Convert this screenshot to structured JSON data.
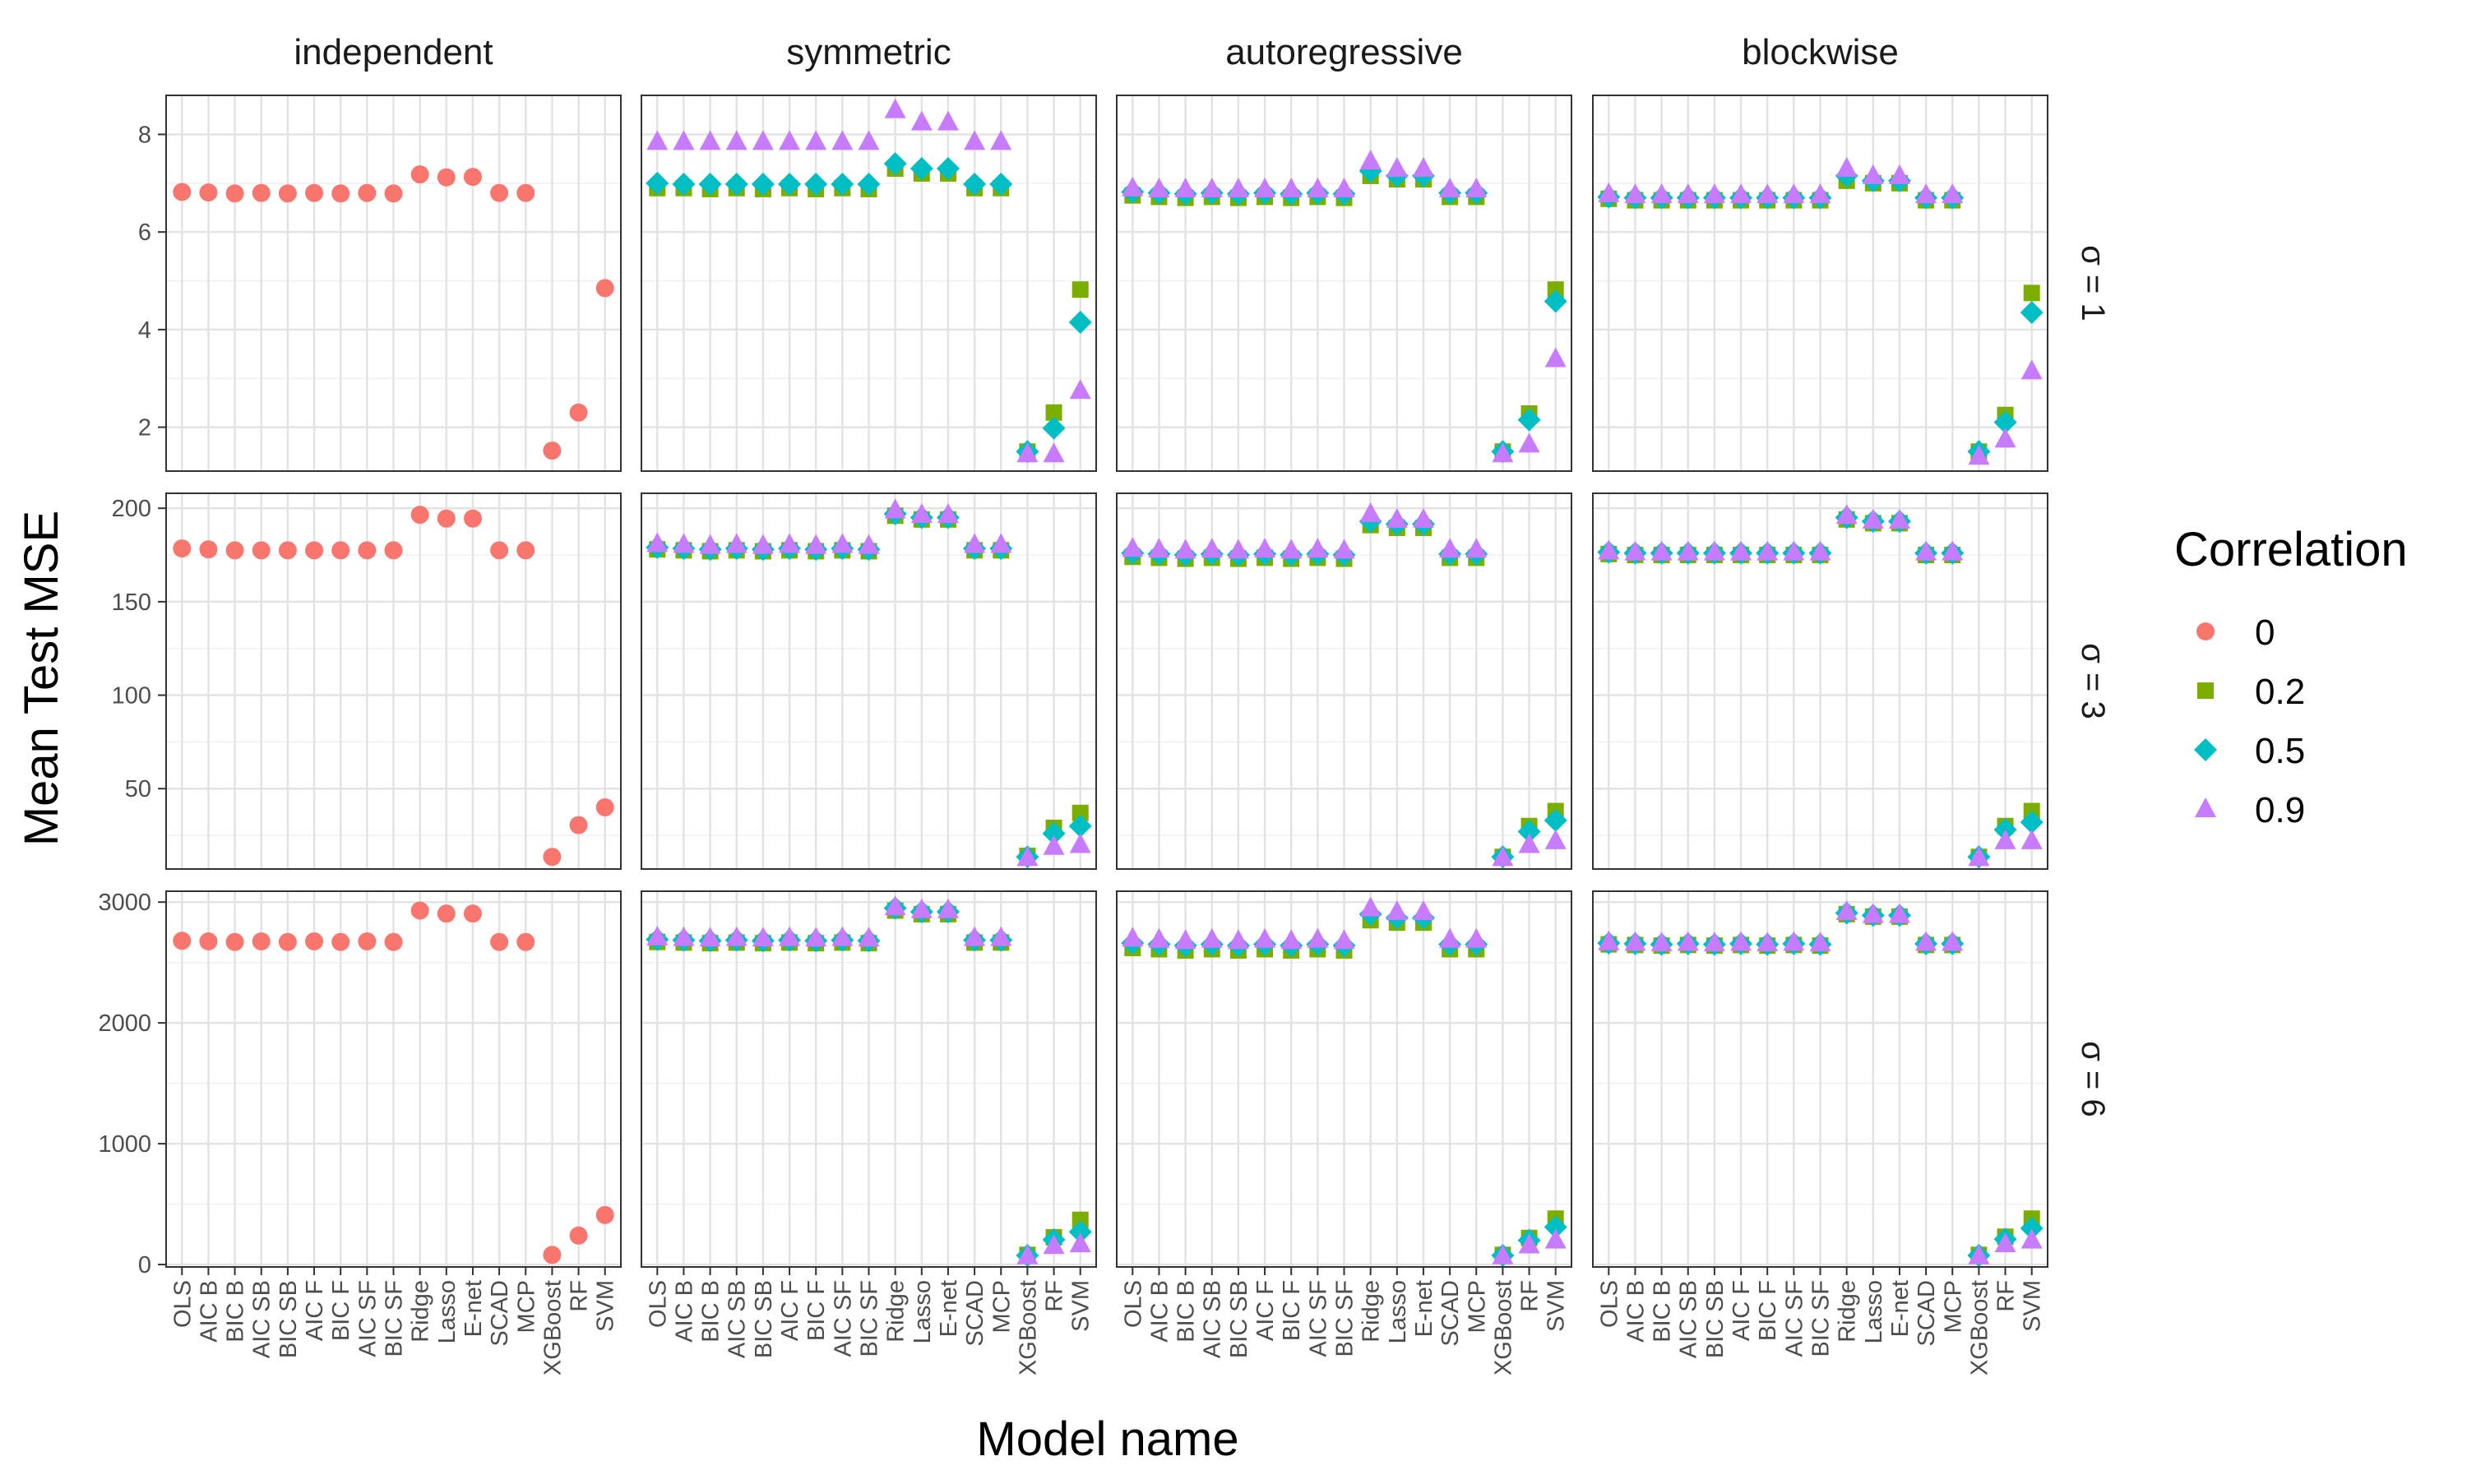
{
  "chart_data": {
    "type": "scatter",
    "ylabel": "Mean Test MSE",
    "xlabel": "Model name",
    "legend": {
      "title": "Correlation",
      "placement": "right",
      "entries": [
        {
          "label": "0",
          "color": "#F8766D",
          "shape": "circle"
        },
        {
          "label": "0.2",
          "color": "#7CAE00",
          "shape": "square"
        },
        {
          "label": "0.5",
          "color": "#00BFC4",
          "shape": "diamond"
        },
        {
          "label": "0.9",
          "color": "#C77CFF",
          "shape": "triangle"
        }
      ]
    },
    "columns": [
      "independent",
      "symmetric",
      "autoregressive",
      "blockwise"
    ],
    "categories": [
      "OLS",
      "AIC B",
      "BIC B",
      "AIC SB",
      "BIC SB",
      "AIC F",
      "BIC F",
      "AIC SF",
      "BIC SF",
      "Ridge",
      "Lasso",
      "E-net",
      "SCAD",
      "MCP",
      "XGBoost",
      "RF",
      "SVM"
    ],
    "grid": true,
    "rows": [
      {
        "label": "σ = 1",
        "ylim": [
          1.1,
          8.8
        ],
        "yticks": [
          2,
          4,
          6,
          8
        ],
        "yticklabels": [
          "2",
          "4",
          "6",
          "8"
        ],
        "panels": [
          {
            "series": [
              {
                "corr": "0",
                "values": [
                  6.82,
                  6.81,
                  6.79,
                  6.8,
                  6.79,
                  6.8,
                  6.79,
                  6.8,
                  6.79,
                  7.18,
                  7.12,
                  7.13,
                  6.8,
                  6.8,
                  1.52,
                  2.3,
                  4.85
                ]
              }
            ]
          },
          {
            "series": [
              {
                "corr": "0.2",
                "values": [
                  6.9,
                  6.9,
                  6.88,
                  6.9,
                  6.88,
                  6.9,
                  6.88,
                  6.9,
                  6.88,
                  7.3,
                  7.2,
                  7.2,
                  6.9,
                  6.9,
                  1.5,
                  2.3,
                  4.82
                ]
              },
              {
                "corr": "0.5",
                "values": [
                  7.0,
                  6.98,
                  6.98,
                  6.98,
                  6.98,
                  6.98,
                  6.98,
                  6.98,
                  6.98,
                  7.4,
                  7.3,
                  7.3,
                  6.98,
                  6.98,
                  1.5,
                  1.98,
                  4.15
                ]
              },
              {
                "corr": "0.9",
                "values": [
                  7.85,
                  7.85,
                  7.85,
                  7.85,
                  7.85,
                  7.85,
                  7.85,
                  7.85,
                  7.85,
                  8.5,
                  8.25,
                  8.25,
                  7.85,
                  7.85,
                  1.45,
                  1.45,
                  2.75
                ]
              }
            ]
          },
          {
            "series": [
              {
                "corr": "0.2",
                "values": [
                  6.75,
                  6.72,
                  6.7,
                  6.72,
                  6.7,
                  6.72,
                  6.7,
                  6.72,
                  6.7,
                  7.15,
                  7.08,
                  7.08,
                  6.72,
                  6.72,
                  1.5,
                  2.28,
                  4.82
                ]
              },
              {
                "corr": "0.5",
                "values": [
                  6.82,
                  6.8,
                  6.78,
                  6.8,
                  6.78,
                  6.8,
                  6.78,
                  6.8,
                  6.78,
                  7.25,
                  7.15,
                  7.15,
                  6.8,
                  6.8,
                  1.5,
                  2.15,
                  4.58
                ]
              },
              {
                "corr": "0.9",
                "values": [
                  6.9,
                  6.88,
                  6.88,
                  6.88,
                  6.88,
                  6.88,
                  6.88,
                  6.88,
                  6.88,
                  7.45,
                  7.3,
                  7.3,
                  6.88,
                  6.88,
                  1.45,
                  1.65,
                  3.4
                ]
              }
            ]
          },
          {
            "series": [
              {
                "corr": "0.2",
                "values": [
                  6.68,
                  6.65,
                  6.65,
                  6.65,
                  6.65,
                  6.65,
                  6.65,
                  6.65,
                  6.65,
                  7.05,
                  7.0,
                  7.0,
                  6.65,
                  6.65,
                  1.5,
                  2.25,
                  4.75
                ]
              },
              {
                "corr": "0.5",
                "values": [
                  6.72,
                  6.7,
                  6.7,
                  6.7,
                  6.7,
                  6.7,
                  6.7,
                  6.7,
                  6.7,
                  7.15,
                  7.05,
                  7.05,
                  6.7,
                  6.7,
                  1.5,
                  2.1,
                  4.35
                ]
              },
              {
                "corr": "0.9",
                "values": [
                  6.78,
                  6.76,
                  6.76,
                  6.76,
                  6.76,
                  6.76,
                  6.76,
                  6.76,
                  6.76,
                  7.3,
                  7.15,
                  7.15,
                  6.76,
                  6.76,
                  1.4,
                  1.75,
                  3.15
                ]
              }
            ]
          }
        ]
      },
      {
        "label": "σ = 3",
        "ylim": [
          7,
          208
        ],
        "yticks": [
          50,
          100,
          150,
          200
        ],
        "yticklabels": [
          "50",
          "100",
          "150",
          "200"
        ],
        "panels": [
          {
            "series": [
              {
                "corr": "0",
                "values": [
                  178.5,
                  178,
                  177.5,
                  177.5,
                  177.5,
                  177.5,
                  177.5,
                  177.5,
                  177.5,
                  196.5,
                  194.5,
                  194.5,
                  177.5,
                  177.5,
                  13.5,
                  30.5,
                  40
                ]
              }
            ]
          },
          {
            "series": [
              {
                "corr": "0.2",
                "values": [
                  178,
                  177.5,
                  177,
                  177.5,
                  177,
                  177.5,
                  177,
                  177.5,
                  177,
                  196,
                  194,
                  194,
                  177.5,
                  177.5,
                  14,
                  29,
                  37
                ]
              },
              {
                "corr": "0.5",
                "values": [
                  179,
                  178.5,
                  178,
                  178.5,
                  178,
                  178.5,
                  178,
                  178.5,
                  178,
                  197,
                  195,
                  195,
                  178.5,
                  178.5,
                  13.5,
                  26,
                  30
                ]
              },
              {
                "corr": "0.9",
                "values": [
                  181,
                  180.5,
                  180,
                  180.5,
                  180,
                  180.5,
                  180,
                  180.5,
                  180,
                  199,
                  196.5,
                  196.5,
                  180.5,
                  180.5,
                  13,
                  19,
                  20
                ]
              }
            ]
          },
          {
            "series": [
              {
                "corr": "0.2",
                "values": [
                  174,
                  173.5,
                  173,
                  173.5,
                  173,
                  173.5,
                  173,
                  173.5,
                  173,
                  191,
                  189.5,
                  189.5,
                  173.5,
                  173.5,
                  13.5,
                  30,
                  38
                ]
              },
              {
                "corr": "0.5",
                "values": [
                  176,
                  175.5,
                  175,
                  175.5,
                  175,
                  175.5,
                  175,
                  175.5,
                  175,
                  193,
                  191.5,
                  191.5,
                  175.5,
                  175.5,
                  13.5,
                  27,
                  33
                ]
              },
              {
                "corr": "0.9",
                "values": [
                  178.5,
                  178,
                  177.5,
                  178,
                  177.5,
                  178,
                  177.5,
                  178,
                  177.5,
                  197,
                  194,
                  194,
                  178,
                  178,
                  13,
                  20,
                  22
                ]
              }
            ]
          },
          {
            "series": [
              {
                "corr": "0.2",
                "values": [
                  175.5,
                  175,
                  175,
                  175,
                  175,
                  175,
                  175,
                  175,
                  175,
                  194,
                  192,
                  192,
                  175,
                  175,
                  13.5,
                  30,
                  38
                ]
              },
              {
                "corr": "0.5",
                "values": [
                  176.5,
                  176,
                  176,
                  176,
                  176,
                  176,
                  176,
                  176,
                  176,
                  195,
                  193,
                  193,
                  176,
                  176,
                  13.5,
                  28,
                  32
                ]
              },
              {
                "corr": "0.9",
                "values": [
                  177,
                  176.5,
                  176.5,
                  176.5,
                  176.5,
                  176.5,
                  176.5,
                  176.5,
                  176.5,
                  196,
                  193.5,
                  193.5,
                  176.5,
                  176.5,
                  13,
                  22,
                  22
                ]
              }
            ]
          }
        ]
      },
      {
        "label": "σ = 6",
        "ylim": [
          -20,
          3090
        ],
        "yticks": [
          0,
          1000,
          2000,
          3000
        ],
        "yticklabels": [
          "0",
          "1000",
          "2000",
          "3000"
        ],
        "panels": [
          {
            "series": [
              {
                "corr": "0",
                "values": [
                  2680,
                  2675,
                  2670,
                  2675,
                  2670,
                  2675,
                  2670,
                  2675,
                  2670,
                  2930,
                  2905,
                  2905,
                  2670,
                  2670,
                  80,
                  240,
                  410
                ]
              }
            ]
          },
          {
            "series": [
              {
                "corr": "0.2",
                "values": [
                  2670,
                  2665,
                  2660,
                  2665,
                  2660,
                  2665,
                  2660,
                  2665,
                  2660,
                  2930,
                  2900,
                  2900,
                  2665,
                  2665,
                  80,
                  225,
                  370
                ]
              },
              {
                "corr": "0.5",
                "values": [
                  2690,
                  2685,
                  2680,
                  2685,
                  2680,
                  2685,
                  2680,
                  2685,
                  2680,
                  2950,
                  2920,
                  2920,
                  2685,
                  2685,
                  75,
                  205,
                  270
                ]
              },
              {
                "corr": "0.9",
                "values": [
                  2710,
                  2705,
                  2700,
                  2705,
                  2700,
                  2705,
                  2700,
                  2705,
                  2700,
                  2960,
                  2935,
                  2935,
                  2705,
                  2705,
                  70,
                  155,
                  170
                ]
              }
            ]
          },
          {
            "series": [
              {
                "corr": "0.2",
                "values": [
                  2620,
                  2610,
                  2600,
                  2610,
                  2600,
                  2610,
                  2600,
                  2610,
                  2600,
                  2850,
                  2830,
                  2830,
                  2610,
                  2610,
                  80,
                  220,
                  380
                ]
              },
              {
                "corr": "0.5",
                "values": [
                  2660,
                  2650,
                  2640,
                  2650,
                  2640,
                  2650,
                  2640,
                  2650,
                  2640,
                  2900,
                  2870,
                  2870,
                  2650,
                  2650,
                  75,
                  200,
                  310
                ]
              },
              {
                "corr": "0.9",
                "values": [
                  2700,
                  2690,
                  2680,
                  2690,
                  2680,
                  2690,
                  2680,
                  2690,
                  2680,
                  2950,
                  2920,
                  2920,
                  2690,
                  2690,
                  70,
                  160,
                  200
                ]
              }
            ]
          },
          {
            "series": [
              {
                "corr": "0.2",
                "values": [
                  2650,
                  2645,
                  2640,
                  2645,
                  2640,
                  2645,
                  2640,
                  2645,
                  2640,
                  2900,
                  2880,
                  2880,
                  2645,
                  2645,
                  80,
                  230,
                  380
                ]
              },
              {
                "corr": "0.5",
                "values": [
                  2660,
                  2655,
                  2650,
                  2655,
                  2650,
                  2655,
                  2650,
                  2655,
                  2650,
                  2910,
                  2890,
                  2890,
                  2655,
                  2655,
                  75,
                  210,
                  300
                ]
              },
              {
                "corr": "0.9",
                "values": [
                  2670,
                  2665,
                  2660,
                  2665,
                  2660,
                  2665,
                  2660,
                  2665,
                  2660,
                  2920,
                  2895,
                  2895,
                  2665,
                  2665,
                  70,
                  170,
                  200
                ]
              }
            ]
          }
        ]
      }
    ]
  }
}
